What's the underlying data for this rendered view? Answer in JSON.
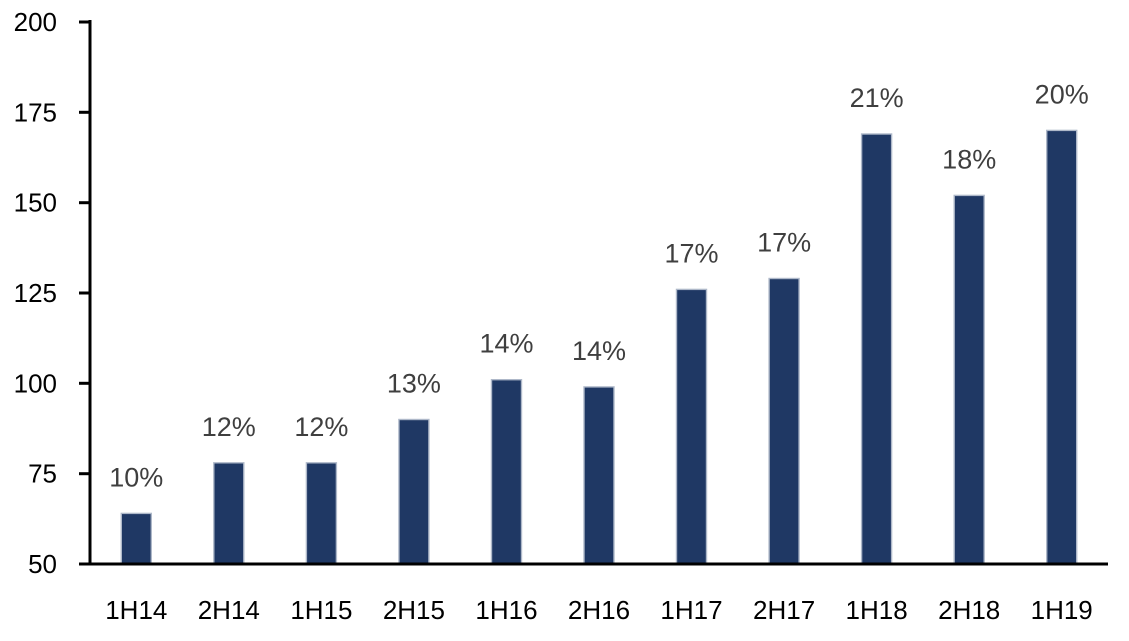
{
  "chart_data": {
    "type": "bar",
    "title": "",
    "xlabel": "",
    "ylabel": "",
    "categories": [
      "1H14",
      "2H14",
      "1H15",
      "2H15",
      "1H16",
      "2H16",
      "1H17",
      "2H17",
      "1H18",
      "2H18",
      "1H19"
    ],
    "values": [
      64,
      78,
      78,
      90,
      101,
      99,
      126,
      129,
      169,
      152,
      170
    ],
    "bar_labels": [
      "10%",
      "12%",
      "12%",
      "13%",
      "14%",
      "14%",
      "17%",
      "17%",
      "21%",
      "18%",
      "20%"
    ],
    "ylim": [
      50,
      200
    ],
    "yticks": [
      50,
      75,
      100,
      125,
      150,
      175,
      200
    ],
    "grid": false,
    "legend": "none",
    "colors": {
      "bar_fill": "#1F3864",
      "bar_border": "#AEB8C9",
      "axis_line": "#000000",
      "tick_label": "#000000",
      "data_label": "#3F3F3F",
      "background": "#FFFFFF"
    }
  }
}
